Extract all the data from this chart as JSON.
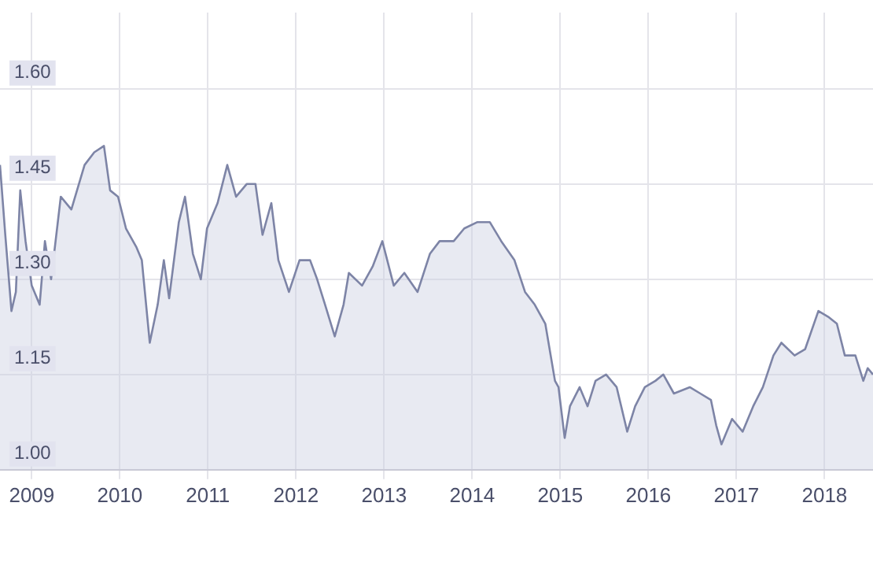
{
  "chart_data": [
    {
      "type": "area",
      "x": [
        2008.64,
        2008.7,
        2008.77,
        2008.82,
        2008.87,
        2008.93,
        2009.0,
        2009.09,
        2009.15,
        2009.22,
        2009.33,
        2009.45,
        2009.6,
        2009.71,
        2009.82,
        2009.89,
        2009.98,
        2010.07,
        2010.19,
        2010.25,
        2010.34,
        2010.43,
        2010.5,
        2010.56,
        2010.67,
        2010.74,
        2010.83,
        2010.92,
        2010.99,
        2011.11,
        2011.22,
        2011.32,
        2011.44,
        2011.54,
        2011.62,
        2011.72,
        2011.8,
        2011.92,
        2012.04,
        2012.16,
        2012.24,
        2012.33,
        2012.44,
        2012.54,
        2012.6,
        2012.75,
        2012.87,
        2012.98,
        2013.11,
        2013.23,
        2013.38,
        2013.52,
        2013.63,
        2013.79,
        2013.91,
        2014.06,
        2014.2,
        2014.33,
        2014.48,
        2014.6,
        2014.71,
        2014.83,
        2014.94,
        2014.98,
        2015.05,
        2015.11,
        2015.22,
        2015.31,
        2015.4,
        2015.52,
        2015.64,
        2015.76,
        2015.85,
        2015.96,
        2016.08,
        2016.17,
        2016.29,
        2016.47,
        2016.59,
        2016.71,
        2016.77,
        2016.83,
        2016.95,
        2017.07,
        2017.19,
        2017.3,
        2017.42,
        2017.51,
        2017.66,
        2017.78,
        2017.93,
        2018.05,
        2018.14,
        2018.23,
        2018.35,
        2018.44,
        2018.49,
        2018.55
      ],
      "series": [
        {
          "color": "#7d84a6",
          "values": [
            1.48,
            1.37,
            1.25,
            1.28,
            1.44,
            1.36,
            1.29,
            1.26,
            1.36,
            1.3,
            1.43,
            1.41,
            1.48,
            1.5,
            1.51,
            1.44,
            1.43,
            1.38,
            1.35,
            1.33,
            1.2,
            1.26,
            1.33,
            1.27,
            1.39,
            1.43,
            1.34,
            1.3,
            1.38,
            1.42,
            1.48,
            1.43,
            1.45,
            1.45,
            1.37,
            1.42,
            1.33,
            1.28,
            1.33,
            1.33,
            1.3,
            1.26,
            1.21,
            1.26,
            1.31,
            1.29,
            1.32,
            1.36,
            1.29,
            1.31,
            1.28,
            1.34,
            1.36,
            1.36,
            1.38,
            1.39,
            1.39,
            1.36,
            1.33,
            1.28,
            1.26,
            1.23,
            1.14,
            1.13,
            1.05,
            1.1,
            1.13,
            1.1,
            1.14,
            1.15,
            1.13,
            1.06,
            1.1,
            1.13,
            1.14,
            1.15,
            1.12,
            1.13,
            1.12,
            1.11,
            1.07,
            1.04,
            1.08,
            1.06,
            1.1,
            1.13,
            1.18,
            1.2,
            1.18,
            1.19,
            1.25,
            1.24,
            1.23,
            1.18,
            1.18,
            1.14,
            1.16,
            1.15
          ]
        }
      ],
      "xlim": [
        2008.64,
        2018.55
      ],
      "xticks": [
        2009,
        2010,
        2011,
        2012,
        2013,
        2014,
        2015,
        2016,
        2017,
        2018
      ],
      "ylim": [
        1.0,
        1.72
      ],
      "yticks": [
        {
          "value": 1.0,
          "label": "1.00"
        },
        {
          "value": 1.15,
          "label": "1.15"
        },
        {
          "value": 1.3,
          "label": "1.30"
        },
        {
          "value": 1.45,
          "label": "1.45"
        },
        {
          "value": 1.6,
          "label": "1.60"
        }
      ],
      "grid": true,
      "legend": false,
      "marker": "none",
      "line_style": "solid"
    }
  ]
}
